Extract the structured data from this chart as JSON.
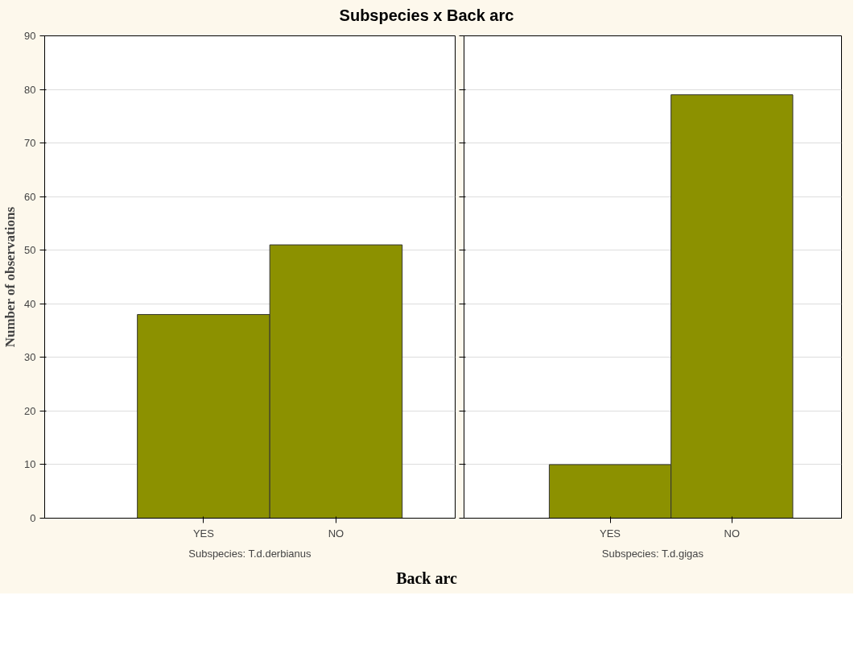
{
  "chart_data": [
    {
      "type": "bar",
      "title": "Subspecies x Back arc",
      "ylabel": "Number of observations",
      "xlabel": "Back arc",
      "categories": [
        "YES",
        "NO"
      ],
      "values": [
        38,
        51
      ],
      "color": "#8c9100",
      "ylim": [
        0,
        90
      ],
      "yticks": [
        0,
        10,
        20,
        30,
        40,
        50,
        60,
        70,
        80,
        90
      ],
      "grid": "y",
      "annotations": [
        "Subspecies: T.d.derbianus"
      ]
    },
    {
      "type": "bar",
      "categories": [
        "YES",
        "NO"
      ],
      "values": [
        10,
        79
      ],
      "color": "#8c9100",
      "ylim": [
        0,
        90
      ],
      "yticks": [
        0,
        10,
        20,
        30,
        40,
        50,
        60,
        70,
        80,
        90
      ],
      "grid": "y",
      "tick_labels": "x",
      "annotations": [
        "Subspecies: T.d.gigas"
      ]
    }
  ]
}
